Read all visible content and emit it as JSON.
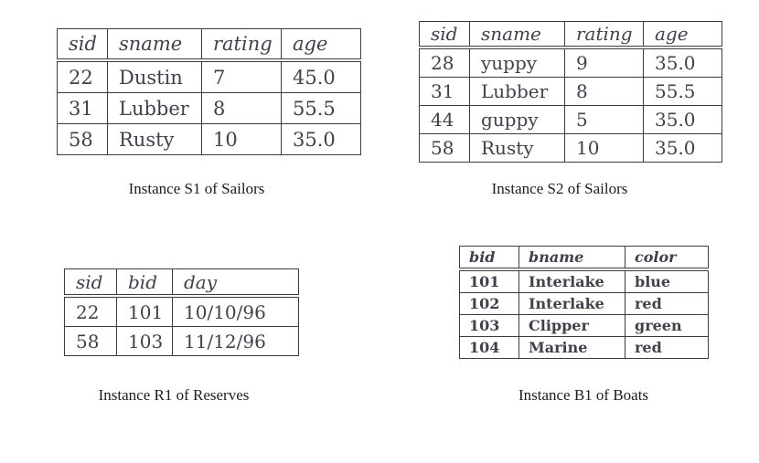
{
  "colors": {
    "background": "#ffffff",
    "border": "#3c3c42",
    "table_text": "#41414b",
    "caption_text": "#1c1c1c"
  },
  "tables": [
    {
      "name": "S1",
      "caption": "Instance S1 of Sailors",
      "columns": [
        "sid",
        "sname",
        "rating",
        "age"
      ],
      "rows": [
        [
          "22",
          "Dustin",
          "7",
          "45.0"
        ],
        [
          "31",
          "Lubber",
          "8",
          "55.5"
        ],
        [
          "58",
          "Rusty",
          "10",
          "35.0"
        ]
      ]
    },
    {
      "name": "S2",
      "caption": "Instance S2 of Sailors",
      "columns": [
        "sid",
        "sname",
        "rating",
        "age"
      ],
      "rows": [
        [
          "28",
          "yuppy",
          "9",
          "35.0"
        ],
        [
          "31",
          "Lubber",
          "8",
          "55.5"
        ],
        [
          "44",
          "guppy",
          "5",
          "35.0"
        ],
        [
          "58",
          "Rusty",
          "10",
          "35.0"
        ]
      ]
    },
    {
      "name": "R1",
      "caption": "Instance R1 of Reserves",
      "columns": [
        "sid",
        "bid",
        "day"
      ],
      "rows": [
        [
          "22",
          "101",
          "10/10/96"
        ],
        [
          "58",
          "103",
          "11/12/96"
        ]
      ]
    },
    {
      "name": "B1",
      "caption": "Instance B1 of Boats",
      "columns": [
        "bid",
        "bname",
        "color"
      ],
      "rows": [
        [
          "101",
          "Interlake",
          "blue"
        ],
        [
          "102",
          "Interlake",
          "red"
        ],
        [
          "103",
          "Clipper",
          "green"
        ],
        [
          "104",
          "Marine",
          "red"
        ]
      ]
    }
  ]
}
